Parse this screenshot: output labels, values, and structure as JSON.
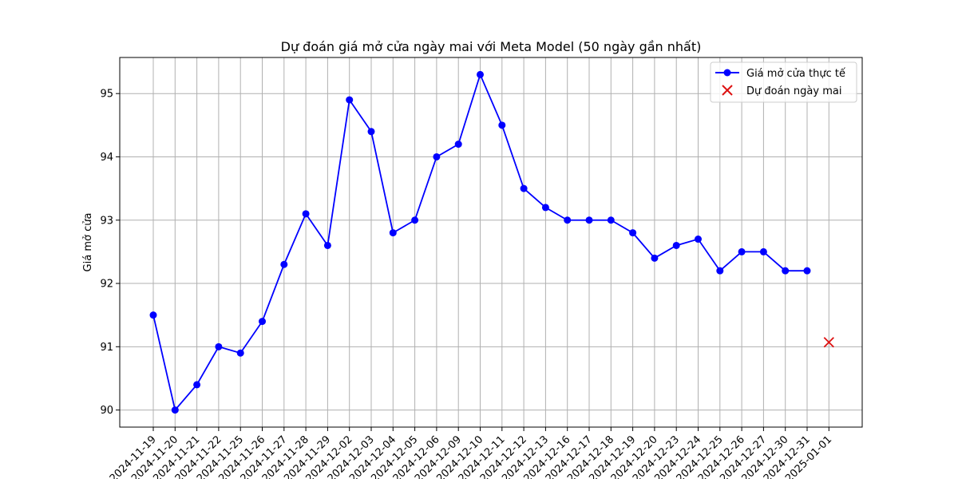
{
  "chart_data": {
    "type": "line",
    "title": "Dự đoán giá mở cửa ngày mai với Meta Model (50 ngày gần nhất)",
    "xlabel": "",
    "ylabel": "Giá mở cửa",
    "ylim": [
      89.73,
      95.57
    ],
    "yticks": [
      90,
      91,
      92,
      93,
      94,
      95
    ],
    "grid": true,
    "legend_position": "top-right",
    "categories": [
      "2024-11-19",
      "2024-11-20",
      "2024-11-21",
      "2024-11-22",
      "2024-11-25",
      "2024-11-26",
      "2024-11-27",
      "2024-11-28",
      "2024-11-29",
      "2024-12-02",
      "2024-12-03",
      "2024-12-04",
      "2024-12-05",
      "2024-12-06",
      "2024-12-09",
      "2024-12-10",
      "2024-12-11",
      "2024-12-12",
      "2024-12-13",
      "2024-12-16",
      "2024-12-17",
      "2024-12-18",
      "2024-12-19",
      "2024-12-20",
      "2024-12-23",
      "2024-12-24",
      "2024-12-25",
      "2024-12-26",
      "2024-12-27",
      "2024-12-30",
      "2024-12-31",
      "2025-01-01"
    ],
    "series": [
      {
        "name": "Giá mở cửa thực tế",
        "color": "#0000ff",
        "marker": "circle",
        "values": [
          91.5,
          90.0,
          90.4,
          91.0,
          90.9,
          91.4,
          92.3,
          93.1,
          92.6,
          94.9,
          94.4,
          92.8,
          93.0,
          94.0,
          94.2,
          95.3,
          94.5,
          93.5,
          93.2,
          93.0,
          93.0,
          93.0,
          92.8,
          92.4,
          92.6,
          92.7,
          92.2,
          92.5,
          92.5,
          92.2,
          92.2,
          null
        ]
      },
      {
        "name": "Dự đoán ngày mai",
        "color": "#dd1111",
        "marker": "x",
        "points": [
          {
            "x": "2025-01-01",
            "y": 91.07
          }
        ]
      }
    ]
  }
}
